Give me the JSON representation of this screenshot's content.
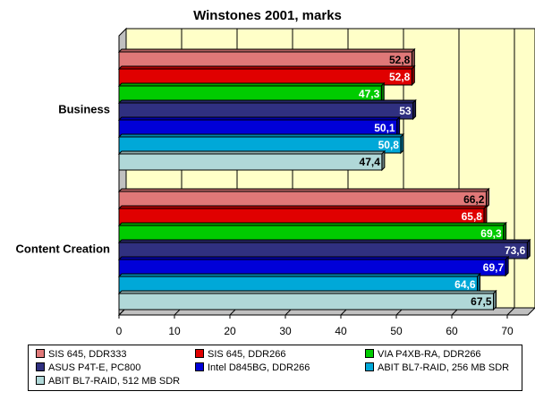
{
  "chart_data": {
    "type": "bar",
    "orientation": "horizontal",
    "title": "Winstones 2001, marks",
    "xlabel": "",
    "ylabel": "",
    "xlim": [
      0,
      75
    ],
    "ticks": [
      0,
      10,
      20,
      30,
      40,
      50,
      60,
      70
    ],
    "grid": true,
    "legend_position": "bottom",
    "categories": [
      "Business",
      "Content Creation"
    ],
    "series": [
      {
        "name": "SIS 645, DDR333",
        "color": "#e07878",
        "values": [
          52.8,
          66.2
        ],
        "labels": [
          "52,8",
          "66,2"
        ]
      },
      {
        "name": "SIS 645, DDR266",
        "color": "#e00000",
        "values": [
          52.8,
          65.8
        ],
        "labels": [
          "52,8",
          "65,8"
        ]
      },
      {
        "name": "VIA P4XB-RA, DDR266",
        "color": "#00cc00",
        "values": [
          47.3,
          69.3
        ],
        "labels": [
          "47,3",
          "69,3"
        ]
      },
      {
        "name": "ASUS P4T-E, PC800",
        "color": "#303080",
        "values": [
          53,
          73.6
        ],
        "labels": [
          "53",
          "73,6"
        ]
      },
      {
        "name": "Intel D845BG, DDR266",
        "color": "#0000d8",
        "values": [
          50.1,
          69.7
        ],
        "labels": [
          "50,1",
          "69,7"
        ]
      },
      {
        "name": "ABIT BL7-RAID, 256 MB SDR",
        "color": "#00a8d8",
        "values": [
          50.8,
          64.6
        ],
        "labels": [
          "50,8",
          "64,6"
        ]
      },
      {
        "name": "ABIT BL7-RAID, 512 MB SDR",
        "color": "#b0d8d8",
        "values": [
          47.4,
          67.5
        ],
        "labels": [
          "47,4",
          "67,5"
        ]
      }
    ],
    "colors": {
      "plot_background": "#ffffc8",
      "side_wall": "#c0c0c0",
      "grid": "#000000"
    }
  }
}
